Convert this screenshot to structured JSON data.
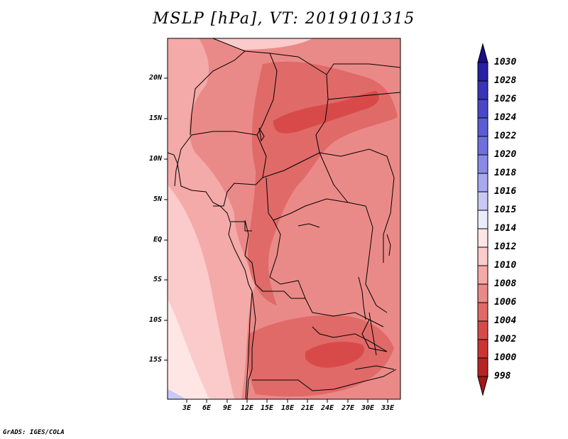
{
  "title": "MSLP [hPa], VT: 2019101315",
  "latitude_labels": [
    "20N",
    "15N",
    "10N",
    "5N",
    "EQ",
    "5S",
    "10S",
    "15S"
  ],
  "longitude_labels": [
    "3E",
    "6E",
    "9E",
    "12E",
    "15E",
    "18E",
    "21E",
    "24E",
    "27E",
    "30E",
    "33E"
  ],
  "colorbar": {
    "levels": [
      "1030",
      "1028",
      "1026",
      "1024",
      "1022",
      "1020",
      "1018",
      "1016",
      "1015",
      "1014",
      "1012",
      "1010",
      "1008",
      "1006",
      "1004",
      "1002",
      "1000",
      "998"
    ],
    "colors": [
      "#1c0c8c",
      "#2a20a4",
      "#3a34b8",
      "#4a48c8",
      "#5c5cd4",
      "#7070dc",
      "#8a8ae6",
      "#a8a8ee",
      "#c8c8f6",
      "#ecebfc",
      "#fde6e4",
      "#fbcaca",
      "#f4aaa8",
      "#ea8a88",
      "#e06a68",
      "#d84a4a",
      "#cc3434",
      "#b82424",
      "#a51818"
    ]
  },
  "credit": "GrADS: IGES/COLA"
}
